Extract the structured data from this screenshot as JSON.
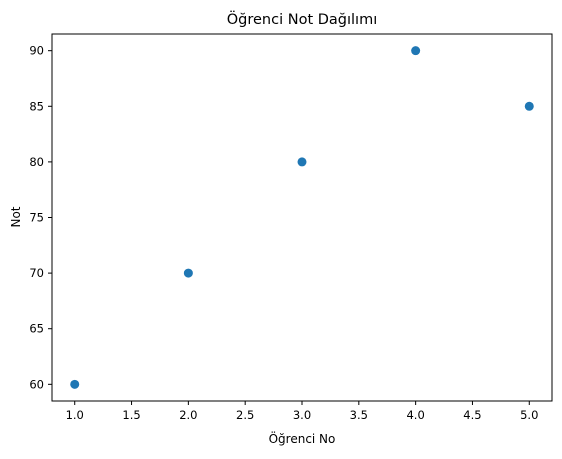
{
  "chart_data": {
    "type": "scatter",
    "title": "Öğrenci Not Dağılımı",
    "xlabel": "Öğrenci No",
    "ylabel": "Not",
    "xlim": [
      0.8,
      5.2
    ],
    "ylim": [
      58.5,
      91.5
    ],
    "xticks": [
      1.0,
      1.5,
      2.0,
      2.5,
      3.0,
      3.5,
      4.0,
      4.5,
      5.0
    ],
    "xtick_labels": [
      "1.0",
      "1.5",
      "2.0",
      "2.5",
      "3.0",
      "3.5",
      "4.0",
      "4.5",
      "5.0"
    ],
    "yticks": [
      60,
      65,
      70,
      75,
      80,
      85,
      90
    ],
    "ytick_labels": [
      "60",
      "65",
      "70",
      "75",
      "80",
      "85",
      "90"
    ],
    "grid": false,
    "legend": false,
    "series": [
      {
        "color": "#1f77b4",
        "x": [
          1,
          2,
          3,
          4,
          5
        ],
        "y": [
          60,
          70,
          80,
          90,
          85
        ]
      }
    ]
  }
}
